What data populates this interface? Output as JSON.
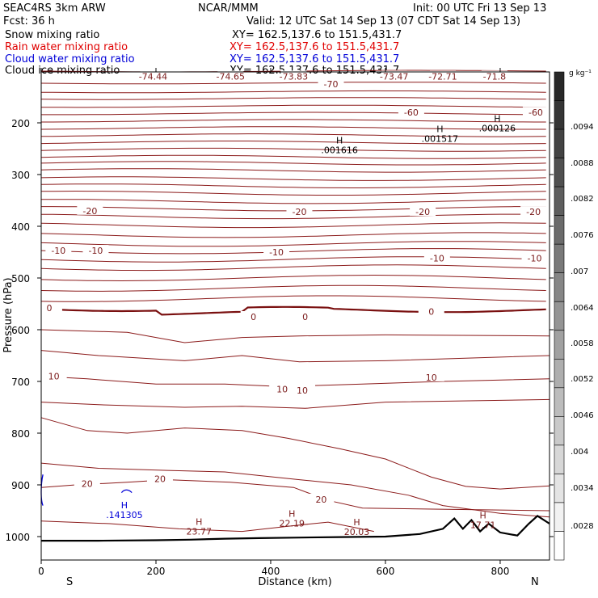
{
  "header": {
    "model": "SEAC4RS   3km ARW",
    "org": "NCAR/MMM",
    "init": "Init: 00 UTC Fri 13 Sep 13",
    "fcst": "Fcst:    36 h",
    "valid": "Valid: 12 UTC Sat 14 Sep 13 (07 CDT Sat 14 Sep 13)"
  },
  "legend": [
    {
      "name": "Snow mixing ratio",
      "xy": "XY=  162.5,137.6  to  151.5,431.7",
      "color": "#000000"
    },
    {
      "name": "Rain water mixing ratio",
      "xy": "XY=  162.5,137.6  to  151.5,431.7",
      "color": "#e00000"
    },
    {
      "name": "Cloud water mixing ratio",
      "xy": "XY=  162.5,137.6  to  151.5,431.7",
      "color": "#0000d8"
    },
    {
      "name": "Cloud ice mixing ratio",
      "xy": "XY=  162.5,137.6  to  151.5,431.7",
      "color": "#000000"
    }
  ],
  "chart_data": {
    "type": "line",
    "xlabel": "Distance (km)",
    "ylabel": "Pressure (hPa)",
    "x_ticks": [
      0,
      200,
      400,
      600,
      800
    ],
    "y_ticks": [
      200,
      300,
      400,
      500,
      600,
      700,
      800,
      900,
      1000
    ],
    "xlim": [
      0,
      886
    ],
    "ylim": [
      1045,
      100
    ],
    "end_labels": {
      "left": "S",
      "right": "N"
    },
    "colorbar": {
      "units": "g kg⁻¹",
      "ticks": [
        ".0094",
        ".0088",
        ".0082",
        ".0076",
        ".007",
        ".0064",
        ".0058",
        ".0052",
        ".0046",
        ".004",
        ".0034",
        ".0028"
      ]
    },
    "temperature_labels": [
      {
        "text": "-74.44",
        "x": 195,
        "p": 110
      },
      {
        "text": "-74.65",
        "x": 330,
        "p": 110
      },
      {
        "text": "-73.83",
        "x": 440,
        "p": 110
      },
      {
        "text": "-70",
        "x": 505,
        "p": 125
      },
      {
        "text": "-73.47",
        "x": 615,
        "p": 110
      },
      {
        "text": "-72.71",
        "x": 700,
        "p": 110
      },
      {
        "text": "-71.8",
        "x": 790,
        "p": 110
      },
      {
        "text": "-60",
        "x": 645,
        "p": 180
      },
      {
        "text": "-60",
        "x": 862,
        "p": 180
      },
      {
        "text": "-20",
        "x": 85,
        "p": 370
      },
      {
        "text": "-20",
        "x": 450,
        "p": 372
      },
      {
        "text": "-20",
        "x": 665,
        "p": 372
      },
      {
        "text": "-20",
        "x": 858,
        "p": 372
      },
      {
        "text": "-10",
        "x": 30,
        "p": 447
      },
      {
        "text": "-10",
        "x": 95,
        "p": 447
      },
      {
        "text": "-10",
        "x": 410,
        "p": 450
      },
      {
        "text": "-10",
        "x": 690,
        "p": 462
      },
      {
        "text": "-10",
        "x": 860,
        "p": 462
      },
      {
        "text": "0",
        "x": 14,
        "p": 558
      },
      {
        "text": "0",
        "x": 370,
        "p": 575
      },
      {
        "text": "0",
        "x": 460,
        "p": 575
      },
      {
        "text": "0",
        "x": 680,
        "p": 565
      },
      {
        "text": "10",
        "x": 22,
        "p": 690
      },
      {
        "text": "10",
        "x": 420,
        "p": 715
      },
      {
        "text": "10",
        "x": 455,
        "p": 717
      },
      {
        "text": "10",
        "x": 680,
        "p": 692
      },
      {
        "text": "20",
        "x": 80,
        "p": 898
      },
      {
        "text": "20",
        "x": 207,
        "p": 888
      },
      {
        "text": "20",
        "x": 488,
        "p": 928
      }
    ],
    "extrema": [
      {
        "kind": "H",
        "value": ".001616",
        "x": 520,
        "p": 240,
        "color": "#000000"
      },
      {
        "kind": "H",
        "value": ".001517",
        "x": 695,
        "p": 218,
        "color": "#000000"
      },
      {
        "kind": "H",
        "value": ".000126",
        "x": 795,
        "p": 198,
        "color": "#000000"
      },
      {
        "kind": "H",
        "value": ".141305",
        "x": 145,
        "p": 945,
        "color": "#0000d8"
      },
      {
        "kind": "H",
        "value": "23.77",
        "x": 275,
        "p": 977,
        "color": "#7a1a1a"
      },
      {
        "kind": "H",
        "value": "22.19",
        "x": 437,
        "p": 962,
        "color": "#7a1a1a"
      },
      {
        "kind": "H",
        "value": "20.03",
        "x": 550,
        "p": 978,
        "color": "#7a1a1a"
      },
      {
        "kind": "H",
        "value": "17.71",
        "x": 770,
        "p": 965,
        "color": "#7a1a1a"
      }
    ]
  }
}
